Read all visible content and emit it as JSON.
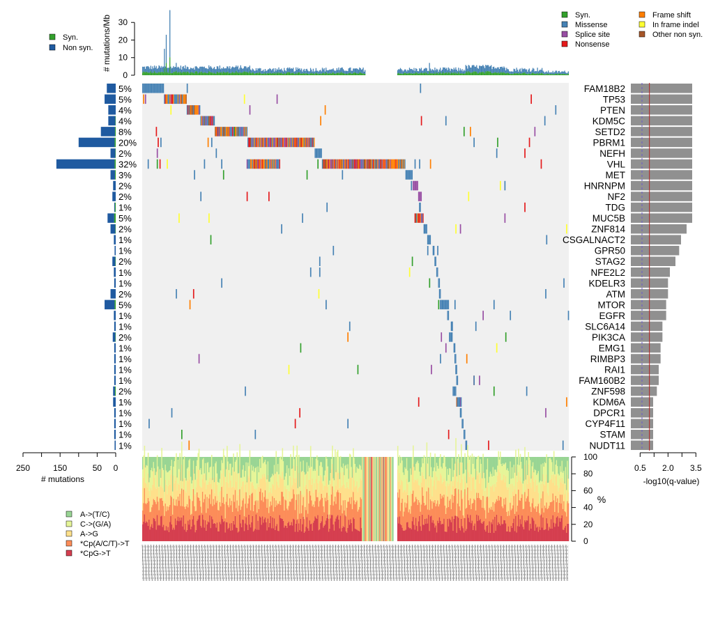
{
  "chart_data": {
    "type": "oncoplot",
    "colors": {
      "syn": "#33a02c",
      "non_syn": "#1f5aa0",
      "missense": "#4682b4",
      "splice_site": "#984ea3",
      "nonsense": "#e41a1c",
      "frame_shift": "#ff7f00",
      "in_frame_indel": "#ffff33",
      "other_non_syn": "#a65628",
      "grid_bg": "#f0f0f0",
      "qbar": "#909090",
      "sig_line": "#b22222",
      "thresh_line": "#6a5acd",
      "spec_AT_TC": "#99d594",
      "spec_CG": "#e6f598",
      "spec_AG": "#fee08b",
      "spec_CpACT": "#fc8d59",
      "spec_CpG": "#d53e4f"
    },
    "genes": [
      {
        "name": "FAM18B2",
        "pct": "5%",
        "mutations": 24,
        "syn": 0,
        "neglog10q": 3.3
      },
      {
        "name": "TP53",
        "pct": "5%",
        "mutations": 30,
        "syn": 0,
        "neglog10q": 3.3
      },
      {
        "name": "PTEN",
        "pct": "4%",
        "mutations": 20,
        "syn": 0,
        "neglog10q": 3.3
      },
      {
        "name": "KDM5C",
        "pct": "4%",
        "mutations": 20,
        "syn": 1,
        "neglog10q": 3.3
      },
      {
        "name": "SETD2",
        "pct": "8%",
        "mutations": 40,
        "syn": 2,
        "neglog10q": 3.3
      },
      {
        "name": "PBRM1",
        "pct": "20%",
        "mutations": 100,
        "syn": 3,
        "neglog10q": 3.3
      },
      {
        "name": "NEFH",
        "pct": "2%",
        "mutations": 14,
        "syn": 1,
        "neglog10q": 3.3
      },
      {
        "name": "VHL",
        "pct": "32%",
        "mutations": 160,
        "syn": 3,
        "neglog10q": 3.3
      },
      {
        "name": "MET",
        "pct": "3%",
        "mutations": 14,
        "syn": 2,
        "neglog10q": 3.3
      },
      {
        "name": "HNRNPM",
        "pct": "2%",
        "mutations": 7,
        "syn": 0,
        "neglog10q": 3.3
      },
      {
        "name": "NF2",
        "pct": "2%",
        "mutations": 9,
        "syn": 0,
        "neglog10q": 3.3
      },
      {
        "name": "TDG",
        "pct": "1%",
        "mutations": 4,
        "syn": 2,
        "neglog10q": 3.3
      },
      {
        "name": "MUC5B",
        "pct": "5%",
        "mutations": 22,
        "syn": 4,
        "neglog10q": 3.3
      },
      {
        "name": "ZNF814",
        "pct": "2%",
        "mutations": 14,
        "syn": 1,
        "neglog10q": 3.0
      },
      {
        "name": "CSGALNACT2",
        "pct": "1%",
        "mutations": 5,
        "syn": 0,
        "neglog10q": 2.7
      },
      {
        "name": "GPR50",
        "pct": "1%",
        "mutations": 3,
        "syn": 0,
        "neglog10q": 2.6
      },
      {
        "name": "STAG2",
        "pct": "2%",
        "mutations": 9,
        "syn": 1,
        "neglog10q": 2.4
      },
      {
        "name": "NFE2L2",
        "pct": "1%",
        "mutations": 5,
        "syn": 0,
        "neglog10q": 2.1
      },
      {
        "name": "KDELR3",
        "pct": "1%",
        "mutations": 4,
        "syn": 0,
        "neglog10q": 2.0
      },
      {
        "name": "ATM",
        "pct": "2%",
        "mutations": 14,
        "syn": 0,
        "neglog10q": 2.0
      },
      {
        "name": "MTOR",
        "pct": "5%",
        "mutations": 30,
        "syn": 3,
        "neglog10q": 1.9
      },
      {
        "name": "EGFR",
        "pct": "1%",
        "mutations": 5,
        "syn": 0,
        "neglog10q": 1.9
      },
      {
        "name": "SLC6A14",
        "pct": "1%",
        "mutations": 4,
        "syn": 0,
        "neglog10q": 1.7
      },
      {
        "name": "PIK3CA",
        "pct": "2%",
        "mutations": 8,
        "syn": 1,
        "neglog10q": 1.7
      },
      {
        "name": "EMG1",
        "pct": "1%",
        "mutations": 4,
        "syn": 0,
        "neglog10q": 1.6
      },
      {
        "name": "RIMBP3",
        "pct": "1%",
        "mutations": 4,
        "syn": 0,
        "neglog10q": 1.6
      },
      {
        "name": "RAI1",
        "pct": "1%",
        "mutations": 4,
        "syn": 0,
        "neglog10q": 1.5
      },
      {
        "name": "FAM160B2",
        "pct": "1%",
        "mutations": 4,
        "syn": 0,
        "neglog10q": 1.5
      },
      {
        "name": "ZNF598",
        "pct": "2%",
        "mutations": 7,
        "syn": 2,
        "neglog10q": 1.4
      },
      {
        "name": "KDM6A",
        "pct": "1%",
        "mutations": 7,
        "syn": 0,
        "neglog10q": 1.2
      },
      {
        "name": "DPCR1",
        "pct": "1%",
        "mutations": 4,
        "syn": 0,
        "neglog10q": 1.2
      },
      {
        "name": "CYP4F11",
        "pct": "1%",
        "mutations": 4,
        "syn": 0,
        "neglog10q": 1.2
      },
      {
        "name": "STAM",
        "pct": "1%",
        "mutations": 4,
        "syn": 0,
        "neglog10q": 1.2
      },
      {
        "name": "NUDT11",
        "pct": "1%",
        "mutations": 3,
        "syn": 0,
        "neglog10q": 1.2
      }
    ],
    "top_panel": {
      "ylabel": "# mutations/Mb",
      "yticks": [
        0,
        10,
        20,
        30
      ],
      "ymax": 38,
      "peak_value": 37,
      "legend": [
        "Syn.",
        "Non syn."
      ]
    },
    "left_panel": {
      "xlabel": "# mutations",
      "xticks": [
        250,
        150,
        50,
        0
      ],
      "extra_ticks": [
        200,
        100
      ],
      "xmax": 250
    },
    "right_panel": {
      "xlabel": "-log10(q-value)",
      "xticks": [
        "0.5",
        "2.0",
        "3.5"
      ],
      "xmin": 0,
      "xmax": 3.9,
      "minor_ticks": [
        1.25,
        2.75
      ],
      "significance_line": 1.0,
      "threshold_line": 0.6
    },
    "spectrum_panel": {
      "ylabel": "%",
      "yticks": [
        0,
        20,
        40,
        60,
        80,
        100
      ]
    },
    "mutation_legend": [
      "Syn.",
      "Missense",
      "Splice site",
      "Nonsense",
      "Frame shift",
      "In frame indel",
      "Other non syn."
    ],
    "spectrum_legend": [
      "A->(T/C)",
      "C->(G/A)",
      "A->G",
      "*Cp(A/C/T)->T",
      "*CpG->T"
    ]
  }
}
